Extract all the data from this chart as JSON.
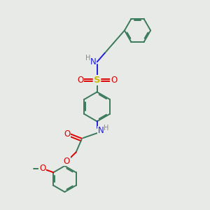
{
  "bg_color": "#e8eae8",
  "bond_color": "#3a7a5a",
  "N_color": "#2020dd",
  "O_color": "#dd0000",
  "S_color": "#ccbb00",
  "H_color": "#888888",
  "line_width": 1.4,
  "font_size": 8.5,
  "fig_size": [
    3.0,
    3.0
  ],
  "dpi": 100,
  "xlim": [
    0,
    10
  ],
  "ylim": [
    0,
    10
  ]
}
